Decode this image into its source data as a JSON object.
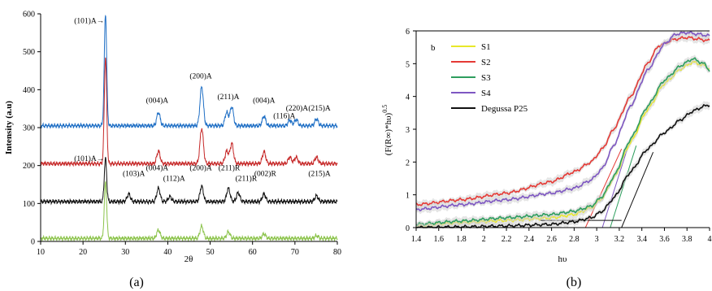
{
  "chart_data": [
    {
      "type": "line",
      "panel_label": "(a)",
      "xlabel": "2θ",
      "ylabel": "Intensity (a.u)",
      "xlim": [
        10,
        80
      ],
      "ylim": [
        0,
        600
      ],
      "xticks": [
        "10",
        "20",
        "30",
        "40",
        "50",
        "60",
        "70",
        "80"
      ],
      "yticks": [
        "0",
        "100",
        "200",
        "300",
        "400",
        "500",
        "600"
      ],
      "grid": false,
      "series": [
        {
          "color": "#1f6fc5",
          "baseline": 305,
          "peaks": [
            [
              25.3,
              600
            ],
            [
              37.8,
              340
            ],
            [
              48.0,
              408
            ],
            [
              53.9,
              340
            ],
            [
              55.1,
              355
            ],
            [
              62.7,
              330
            ],
            [
              68.8,
              320
            ],
            [
              70.3,
              322
            ],
            [
              75.1,
              323
            ]
          ]
        },
        {
          "color": "#c62828",
          "baseline": 205,
          "peaks": [
            [
              25.3,
              485
            ],
            [
              37.8,
              238
            ],
            [
              48.0,
              298
            ],
            [
              53.9,
              238
            ],
            [
              55.1,
              258
            ],
            [
              62.7,
              236
            ],
            [
              68.8,
              222
            ],
            [
              70.3,
              222
            ],
            [
              75.1,
              222
            ]
          ]
        },
        {
          "color": "#111111",
          "baseline": 105,
          "peaks": [
            [
              25.3,
              218
            ],
            [
              30.8,
              125
            ],
            [
              37.8,
              140
            ],
            [
              40.5,
              118
            ],
            [
              48.0,
              145
            ],
            [
              54.3,
              140
            ],
            [
              56.6,
              128
            ],
            [
              62.7,
              125
            ],
            [
              75.1,
              120
            ]
          ]
        },
        {
          "color": "#8bc34a",
          "baseline": 8,
          "peaks": [
            [
              25.3,
              155
            ],
            [
              37.8,
              30
            ],
            [
              48.0,
              40
            ],
            [
              54.3,
              25
            ],
            [
              62.7,
              20
            ],
            [
              75.1,
              15
            ]
          ]
        }
      ],
      "annotations": [
        {
          "text": "(101)A→",
          "x": 25.0,
          "y": 575
        },
        {
          "text": "(004)A",
          "x": 37.5,
          "y": 365
        },
        {
          "text": "(200)A",
          "x": 47.8,
          "y": 430
        },
        {
          "text": "(211)A",
          "x": 54.3,
          "y": 375
        },
        {
          "text": "(004)A",
          "x": 62.7,
          "y": 365
        },
        {
          "text": "(116)A",
          "x": 67.5,
          "y": 325
        },
        {
          "text": "(220)A",
          "x": 70.5,
          "y": 345
        },
        {
          "text": "(215)A",
          "x": 75.8,
          "y": 345
        },
        {
          "text": "(101)A→",
          "x": 25.0,
          "y": 212
        },
        {
          "text": "(103)A",
          "x": 32.0,
          "y": 172
        },
        {
          "text": "(004)A",
          "x": 37.5,
          "y": 187
        },
        {
          "text": "(112)A",
          "x": 41.5,
          "y": 160
        },
        {
          "text": "(200)A",
          "x": 47.8,
          "y": 187
        },
        {
          "text": "(211)R",
          "x": 54.5,
          "y": 187
        },
        {
          "text": "(211)R",
          "x": 58.5,
          "y": 160
        },
        {
          "text": "(002)R",
          "x": 63.0,
          "y": 172
        },
        {
          "text": "(215)A",
          "x": 75.8,
          "y": 172
        }
      ]
    },
    {
      "type": "line",
      "panel_label": "(b)",
      "inner_label": "b",
      "xlabel": "hυ",
      "ylabel": "(F(R∞)*hυ)^0.5",
      "ylabel_base": "(F(R∞)*hυ)",
      "ylabel_exp": "0.5",
      "xlim": [
        1.4,
        4.0
      ],
      "ylim": [
        0,
        6
      ],
      "xticks": [
        "1.4",
        "1.6",
        "1.8",
        "2",
        "2.2",
        "2.4",
        "2.6",
        "2.8",
        "3",
        "3.2",
        "3.4",
        "3.6",
        "3.8",
        "4"
      ],
      "yticks": [
        "0",
        "1",
        "2",
        "3",
        "4",
        "5",
        "6"
      ],
      "grid": false,
      "legend_position": "top-left",
      "series": [
        {
          "name": "S1",
          "color": "#e8e82a",
          "points": [
            [
              1.4,
              0.05
            ],
            [
              1.8,
              0.15
            ],
            [
              2.2,
              0.22
            ],
            [
              2.6,
              0.3
            ],
            [
              2.8,
              0.4
            ],
            [
              2.95,
              0.6
            ],
            [
              3.05,
              0.9
            ],
            [
              3.15,
              1.5
            ],
            [
              3.3,
              2.6
            ],
            [
              3.45,
              3.6
            ],
            [
              3.6,
              4.4
            ],
            [
              3.75,
              4.85
            ],
            [
              3.85,
              5.05
            ],
            [
              3.95,
              4.95
            ],
            [
              4.0,
              4.85
            ]
          ]
        },
        {
          "name": "S2",
          "color": "#e53935",
          "points": [
            [
              1.4,
              0.7
            ],
            [
              1.8,
              0.85
            ],
            [
              2.2,
              1.05
            ],
            [
              2.6,
              1.4
            ],
            [
              2.8,
              1.7
            ],
            [
              2.95,
              2.0
            ],
            [
              3.05,
              2.4
            ],
            [
              3.15,
              3.0
            ],
            [
              3.3,
              4.0
            ],
            [
              3.45,
              5.0
            ],
            [
              3.55,
              5.55
            ],
            [
              3.7,
              5.75
            ],
            [
              3.8,
              5.8
            ],
            [
              3.9,
              5.75
            ],
            [
              4.0,
              5.7
            ]
          ]
        },
        {
          "name": "S3",
          "color": "#2e9e5e",
          "points": [
            [
              1.4,
              0.1
            ],
            [
              1.8,
              0.2
            ],
            [
              2.2,
              0.3
            ],
            [
              2.6,
              0.4
            ],
            [
              2.8,
              0.5
            ],
            [
              2.95,
              0.65
            ],
            [
              3.05,
              0.95
            ],
            [
              3.15,
              1.55
            ],
            [
              3.3,
              2.7
            ],
            [
              3.45,
              3.7
            ],
            [
              3.6,
              4.5
            ],
            [
              3.75,
              4.95
            ],
            [
              3.85,
              5.15
            ],
            [
              3.95,
              5.0
            ],
            [
              4.0,
              4.8
            ]
          ]
        },
        {
          "name": "S4",
          "color": "#7e57c2",
          "points": [
            [
              1.4,
              0.55
            ],
            [
              1.8,
              0.7
            ],
            [
              2.2,
              0.85
            ],
            [
              2.6,
              1.05
            ],
            [
              2.8,
              1.2
            ],
            [
              2.95,
              1.45
            ],
            [
              3.05,
              1.8
            ],
            [
              3.15,
              2.5
            ],
            [
              3.3,
              3.7
            ],
            [
              3.45,
              4.8
            ],
            [
              3.6,
              5.6
            ],
            [
              3.7,
              5.9
            ],
            [
              3.8,
              5.95
            ],
            [
              3.9,
              5.9
            ],
            [
              4.0,
              5.85
            ]
          ]
        },
        {
          "name": "Degussa P25",
          "color": "#111111",
          "points": [
            [
              1.4,
              0.0
            ],
            [
              1.8,
              0.02
            ],
            [
              2.2,
              0.05
            ],
            [
              2.6,
              0.1
            ],
            [
              2.8,
              0.18
            ],
            [
              2.95,
              0.3
            ],
            [
              3.05,
              0.5
            ],
            [
              3.15,
              0.9
            ],
            [
              3.3,
              1.7
            ],
            [
              3.45,
              2.4
            ],
            [
              3.6,
              2.9
            ],
            [
              3.75,
              3.3
            ],
            [
              3.85,
              3.55
            ],
            [
              3.95,
              3.7
            ],
            [
              4.0,
              3.75
            ]
          ]
        }
      ],
      "tangent_lines": [
        {
          "color": "#e53935",
          "from": [
            2.9,
            0
          ],
          "to": [
            3.22,
            2.4
          ]
        },
        {
          "color": "#7e57c2",
          "from": [
            3.05,
            0
          ],
          "to": [
            3.28,
            2.5
          ]
        },
        {
          "color": "#2e9e5e",
          "from": [
            3.12,
            0
          ],
          "to": [
            3.35,
            2.5
          ]
        },
        {
          "color": "#111111",
          "from": [
            3.22,
            0
          ],
          "to": [
            3.5,
            2.3
          ]
        },
        {
          "color": "#111111",
          "from": [
            2.5,
            0.22
          ],
          "to": [
            3.22,
            0.22
          ]
        }
      ]
    }
  ]
}
